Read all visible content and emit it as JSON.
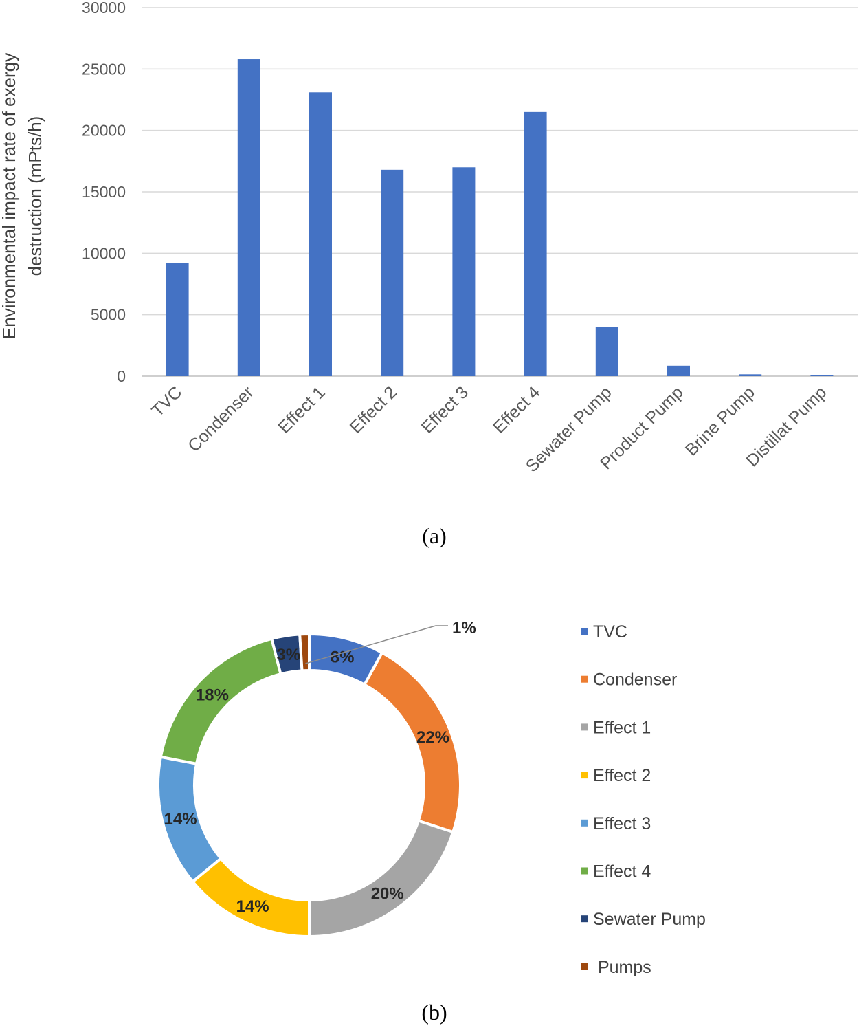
{
  "chart_data": [
    {
      "type": "bar",
      "title": "",
      "xlabel": "",
      "ylabel_lines": [
        "Environmental impact rate of exergy",
        "destruction (mPts/h)"
      ],
      "categories": [
        "TVC",
        "Condenser",
        "Effect 1",
        "Effect 2",
        "Effect 3",
        "Effect 4",
        "Sewater Pump",
        "Product Pump",
        "Brine Pump",
        "Distillat Pump"
      ],
      "values": [
        9200,
        25800,
        23100,
        16800,
        17000,
        21500,
        4000,
        850,
        150,
        100
      ],
      "ylim": [
        0,
        30000
      ],
      "yticks": [
        "0",
        "5000",
        "10000",
        "15000",
        "20000",
        "25000",
        "30000"
      ],
      "grid": true,
      "color": "#4472C4",
      "caption": "(a)"
    },
    {
      "type": "pie",
      "donut": true,
      "categories": [
        "TVC",
        "Condenser",
        "Effect 1",
        "Effect 2",
        "Effect 3",
        "Effect 4",
        "Sewater Pump",
        " Pumps"
      ],
      "values": [
        8,
        22,
        20,
        14,
        14,
        18,
        3,
        1
      ],
      "labels": [
        "8%",
        "22%",
        "20%",
        "14%",
        "14%",
        "18%",
        "3%",
        "1%"
      ],
      "colors": [
        "#4472C4",
        "#ED7D31",
        "#A5A5A5",
        "#FFC000",
        "#5B9BD5",
        "#70AD47",
        "#264478",
        "#9E480E"
      ],
      "legend_position": "right",
      "caption": "(b)"
    }
  ]
}
